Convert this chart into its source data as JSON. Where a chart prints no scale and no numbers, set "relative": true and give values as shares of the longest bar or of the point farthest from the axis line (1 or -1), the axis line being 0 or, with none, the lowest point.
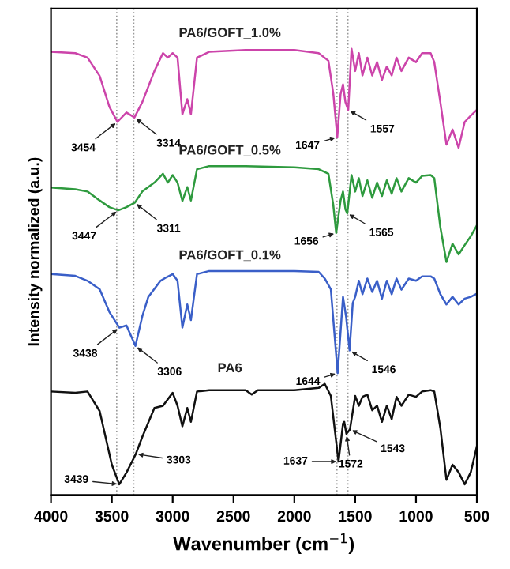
{
  "chart_data": {
    "type": "line",
    "relative": true,
    "xlabel": "Wavenumber (cm$^{−1}$)",
    "ylabel": "Intensity normalized (a.u.)",
    "xlim": [
      4000,
      500
    ],
    "xticks": [
      4000,
      3500,
      3000,
      2500,
      2000,
      1500,
      1000,
      500
    ],
    "grid": false,
    "legend": false,
    "marker": "none",
    "line_style": "solid",
    "tick_labels": "x",
    "series": [
      {
        "name": "PA6/GOFT_1.0%",
        "color": "#cc44aa",
        "x": [
          4000,
          3800,
          3700,
          3600,
          3520,
          3454,
          3380,
          3314,
          3250,
          3150,
          3080,
          3040,
          3000,
          2960,
          2920,
          2880,
          2850,
          2800,
          2700,
          2400,
          2000,
          1800,
          1720,
          1680,
          1647,
          1620,
          1600,
          1580,
          1557,
          1530,
          1500,
          1470,
          1440,
          1400,
          1360,
          1320,
          1280,
          1240,
          1200,
          1160,
          1120,
          1060,
          1000,
          950,
          880,
          850,
          800,
          750,
          700,
          650,
          600,
          550,
          500
        ],
        "values": [
          0.993,
          0.99,
          0.98,
          0.939,
          0.87,
          0.836,
          0.857,
          0.846,
          0.88,
          0.95,
          0.99,
          0.98,
          0.99,
          0.98,
          0.853,
          0.887,
          0.853,
          0.98,
          0.993,
          0.997,
          0.997,
          0.99,
          0.973,
          0.9,
          0.802,
          0.898,
          0.92,
          0.88,
          0.863,
          1.0,
          0.95,
          0.99,
          0.94,
          0.98,
          0.94,
          0.97,
          0.93,
          0.96,
          0.94,
          0.98,
          0.95,
          0.98,
          0.97,
          0.99,
          0.99,
          0.97,
          0.88,
          0.785,
          0.819,
          0.778,
          0.836,
          0.85,
          0.863
        ]
      },
      {
        "name": "PA6/GOFT_0.5%",
        "color": "#2e9a3e",
        "x": [
          4000,
          3800,
          3700,
          3600,
          3520,
          3447,
          3380,
          3311,
          3250,
          3150,
          3080,
          3040,
          3000,
          2960,
          2920,
          2880,
          2850,
          2800,
          2700,
          2400,
          2000,
          1800,
          1720,
          1680,
          1656,
          1620,
          1600,
          1580,
          1565,
          1530,
          1500,
          1470,
          1440,
          1400,
          1360,
          1320,
          1280,
          1240,
          1200,
          1160,
          1120,
          1060,
          1000,
          950,
          880,
          850,
          800,
          750,
          700,
          650,
          600,
          550,
          500
        ],
        "values": [
          0.689,
          0.685,
          0.68,
          0.66,
          0.645,
          0.638,
          0.645,
          0.655,
          0.68,
          0.7,
          0.72,
          0.7,
          0.717,
          0.7,
          0.659,
          0.69,
          0.66,
          0.73,
          0.737,
          0.737,
          0.734,
          0.73,
          0.72,
          0.65,
          0.587,
          0.66,
          0.68,
          0.64,
          0.631,
          0.717,
          0.68,
          0.71,
          0.67,
          0.705,
          0.666,
          0.7,
          0.67,
          0.705,
          0.675,
          0.71,
          0.68,
          0.71,
          0.7,
          0.715,
          0.717,
          0.71,
          0.6,
          0.522,
          0.563,
          0.539,
          0.56,
          0.58,
          0.604
        ]
      },
      {
        "name": "PA6/GOFT_0.1%",
        "color": "#3a5fc8",
        "x": [
          4000,
          3800,
          3700,
          3600,
          3520,
          3438,
          3380,
          3306,
          3250,
          3200,
          3100,
          3050,
          3000,
          2960,
          2920,
          2880,
          2850,
          2800,
          2700,
          2400,
          2000,
          1800,
          1750,
          1700,
          1644,
          1600,
          1575,
          1546,
          1520,
          1500,
          1470,
          1440,
          1400,
          1360,
          1320,
          1280,
          1240,
          1200,
          1160,
          1120,
          1060,
          1000,
          950,
          880,
          850,
          800,
          750,
          700,
          650,
          600,
          550,
          500
        ],
        "values": [
          0.495,
          0.491,
          0.48,
          0.461,
          0.41,
          0.375,
          0.38,
          0.334,
          0.4,
          0.444,
          0.48,
          0.488,
          0.495,
          0.48,
          0.375,
          0.427,
          0.392,
          0.495,
          0.502,
          0.502,
          0.502,
          0.5,
          0.485,
          0.461,
          0.273,
          0.444,
          0.4,
          0.324,
          0.43,
          0.444,
          0.48,
          0.45,
          0.485,
          0.455,
          0.48,
          0.44,
          0.48,
          0.45,
          0.485,
          0.46,
          0.485,
          0.48,
          0.49,
          0.49,
          0.485,
          0.45,
          0.427,
          0.444,
          0.427,
          0.44,
          0.444,
          0.451
        ]
      },
      {
        "name": "PA6",
        "color": "#111111",
        "x": [
          4000,
          3800,
          3700,
          3600,
          3500,
          3439,
          3380,
          3303,
          3250,
          3150,
          3080,
          3000,
          2960,
          2920,
          2880,
          2850,
          2800,
          2700,
          2400,
          2350,
          2300,
          2000,
          1800,
          1750,
          1700,
          1637,
          1600,
          1590,
          1572,
          1543,
          1500,
          1470,
          1440,
          1400,
          1360,
          1320,
          1280,
          1240,
          1200,
          1160,
          1120,
          1060,
          1000,
          950,
          880,
          850,
          800,
          750,
          700,
          650,
          600,
          550,
          500
        ],
        "values": [
          0.232,
          0.229,
          0.232,
          0.188,
          0.068,
          0.024,
          0.05,
          0.092,
          0.13,
          0.195,
          0.2,
          0.229,
          0.2,
          0.154,
          0.195,
          0.164,
          0.232,
          0.235,
          0.235,
          0.225,
          0.235,
          0.235,
          0.24,
          0.249,
          0.222,
          0.075,
          0.16,
          0.164,
          0.137,
          0.147,
          0.222,
          0.2,
          0.22,
          0.225,
          0.19,
          0.2,
          0.164,
          0.2,
          0.17,
          0.22,
          0.2,
          0.225,
          0.22,
          0.232,
          0.235,
          0.232,
          0.15,
          0.034,
          0.068,
          0.051,
          0.024,
          0.051,
          0.109
        ]
      }
    ],
    "ref_lines": [
      {
        "axis": "x",
        "value": 3460,
        "color": "#999999",
        "line_style": "dotted"
      },
      {
        "axis": "x",
        "value": 3320,
        "color": "#999999",
        "line_style": "dotted"
      },
      {
        "axis": "x",
        "value": 1650,
        "color": "#999999",
        "line_style": "dotted"
      },
      {
        "axis": "x",
        "value": 1560,
        "color": "#999999",
        "line_style": "dotted"
      }
    ],
    "annotations": [
      {
        "text": "3454",
        "x": 3454,
        "y": 0.836
      },
      {
        "text": "3314",
        "x": 3314,
        "y": 0.846
      },
      {
        "text": "1647",
        "x": 1647,
        "y": 0.802
      },
      {
        "text": "1557",
        "x": 1557,
        "y": 0.863
      },
      {
        "text": "3447",
        "x": 3447,
        "y": 0.638
      },
      {
        "text": "3311",
        "x": 3311,
        "y": 0.655
      },
      {
        "text": "1656",
        "x": 1656,
        "y": 0.587
      },
      {
        "text": "1565",
        "x": 1565,
        "y": 0.631
      },
      {
        "text": "3438",
        "x": 3438,
        "y": 0.375
      },
      {
        "text": "3306",
        "x": 3306,
        "y": 0.334
      },
      {
        "text": "1644",
        "x": 1644,
        "y": 0.273
      },
      {
        "text": "1546",
        "x": 1546,
        "y": 0.324
      },
      {
        "text": "3439",
        "x": 3439,
        "y": 0.024
      },
      {
        "text": "3303",
        "x": 3303,
        "y": 0.092
      },
      {
        "text": "1637",
        "x": 1637,
        "y": 0.075
      },
      {
        "text": "1543",
        "x": 1543,
        "y": 0.147
      },
      {
        "text": "1572",
        "x": 1572,
        "y": 0.137
      }
    ]
  }
}
